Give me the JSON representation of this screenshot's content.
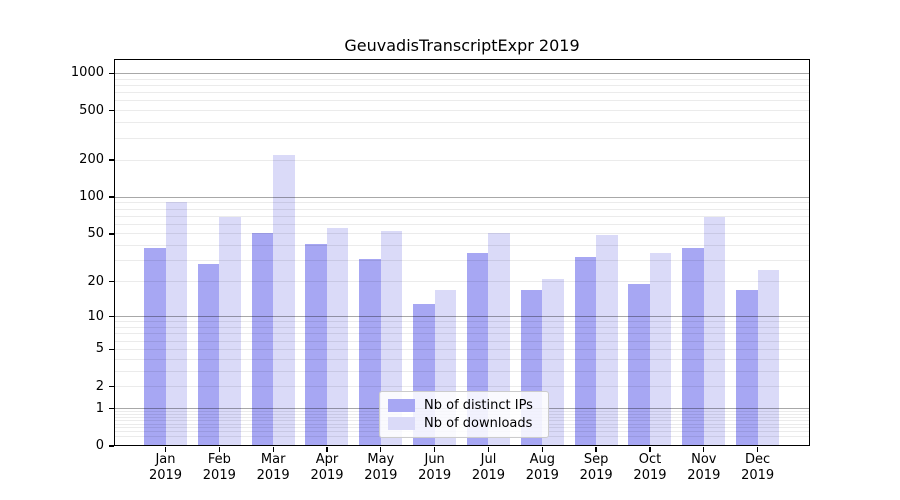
{
  "chart_data": {
    "type": "bar",
    "title": "GeuvadisTranscriptExpr 2019",
    "categories": [
      "Jan 2019",
      "Feb 2019",
      "Mar 2019",
      "Apr 2019",
      "May 2019",
      "Jun 2019",
      "Jul 2019",
      "Aug 2019",
      "Sep 2019",
      "Oct 2019",
      "Nov 2019",
      "Dec 2019"
    ],
    "series": [
      {
        "name": "Nb of distinct IPs",
        "color": "#a7a7f3",
        "values": [
          38,
          28,
          51,
          41,
          31,
          13,
          35,
          17,
          32,
          19,
          38,
          17
        ]
      },
      {
        "name": "Nb of downloads",
        "color": "#dadaf8",
        "values": [
          91,
          69,
          220,
          56,
          53,
          17,
          51,
          21,
          49,
          35,
          69,
          25
        ]
      }
    ],
    "yscale": "log1p",
    "ylim": [
      0,
      1320
    ],
    "yticks": [
      0,
      1,
      2,
      5,
      10,
      20,
      50,
      100,
      200,
      500,
      1000
    ],
    "grid_major": [
      1,
      10,
      100,
      1000
    ],
    "grid": true,
    "legend_position": "lower center"
  }
}
